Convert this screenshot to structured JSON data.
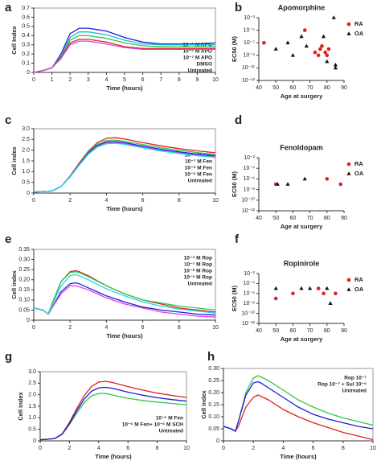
{
  "chart_data": [
    {
      "type": "line",
      "panel": "a",
      "xlabel": "Time (hours)",
      "ylabel": "Cell Index",
      "xlim": [
        0,
        10
      ],
      "ylim": [
        0,
        0.7
      ],
      "xticks": [
        0,
        1,
        2,
        3,
        4,
        5,
        6,
        7,
        8,
        9,
        10
      ],
      "yticks": [
        0,
        0.1,
        0.2,
        0.3,
        0.4,
        0.5,
        0.6,
        0.7
      ],
      "x": [
        0,
        0.5,
        1,
        1.5,
        2,
        2.5,
        3,
        4,
        5,
        6,
        7,
        8,
        9,
        10
      ],
      "series": [
        {
          "name": "10⁻⁵ M APO",
          "color": "#1a1adc",
          "values": [
            0,
            0.02,
            0.05,
            0.2,
            0.42,
            0.48,
            0.48,
            0.45,
            0.38,
            0.33,
            0.31,
            0.31,
            0.31,
            0.32
          ]
        },
        {
          "name": "10⁻⁶ M APO",
          "color": "#1fb8d8",
          "values": [
            0,
            0.02,
            0.05,
            0.18,
            0.38,
            0.44,
            0.44,
            0.41,
            0.35,
            0.31,
            0.3,
            0.3,
            0.3,
            0.3
          ]
        },
        {
          "name": "10⁻⁷ M APO",
          "color": "#2ec84a",
          "values": [
            0,
            0.02,
            0.05,
            0.17,
            0.35,
            0.4,
            0.4,
            0.37,
            0.32,
            0.29,
            0.28,
            0.28,
            0.28,
            0.28
          ]
        },
        {
          "name": "DMSO",
          "color": "#e02020",
          "values": [
            0,
            0.02,
            0.05,
            0.16,
            0.32,
            0.36,
            0.36,
            0.33,
            0.28,
            0.26,
            0.26,
            0.26,
            0.26,
            0.26
          ]
        },
        {
          "name": "Untreated",
          "color": "#e040e0",
          "values": [
            0,
            0.02,
            0.05,
            0.15,
            0.3,
            0.34,
            0.34,
            0.31,
            0.27,
            0.25,
            0.25,
            0.25,
            0.25,
            0.25
          ]
        }
      ]
    },
    {
      "type": "scatter",
      "panel": "b",
      "title": "Apomorphine",
      "xlabel": "Age at surgery",
      "ylabel": "EC50 (M)",
      "log_y": true,
      "xlim": [
        40,
        90
      ],
      "ylim": [
        1e-13,
        0.001
      ],
      "xticks": [
        40,
        50,
        60,
        70,
        80,
        90
      ],
      "yticks": [
        {
          "value": 0.001,
          "label": "10⁻³"
        },
        {
          "value": 1e-05,
          "label": "10⁻⁵"
        },
        {
          "value": 1e-07,
          "label": "10⁻⁷"
        },
        {
          "value": 1e-09,
          "label": "10⁻⁹"
        },
        {
          "value": 1e-11,
          "label": "10⁻¹¹"
        },
        {
          "value": 1e-13,
          "label": "10⁻¹³"
        }
      ],
      "series": [
        {
          "name": "RA",
          "color": "#e02020",
          "marker": "circle",
          "x": [
            43,
            67,
            73,
            75,
            76,
            77,
            79,
            80,
            81
          ],
          "values": [
            1e-07,
            1e-05,
            3e-09,
            1e-09,
            1e-08,
            3e-08,
            3e-09,
            1e-09,
            1e-08
          ]
        },
        {
          "name": "OA",
          "color": "#111111",
          "marker": "triangle",
          "x": [
            50,
            57,
            60,
            65,
            68,
            78,
            80,
            84,
            85,
            85
          ],
          "values": [
            1e-08,
            1e-07,
            1e-09,
            1e-06,
            3e-08,
            1e-06,
            1e-10,
            0.001,
            1e-11,
            3e-11
          ]
        }
      ]
    },
    {
      "type": "line",
      "panel": "c",
      "xlabel": "Time (hours)",
      "ylabel": "Cell index",
      "xlim": [
        0,
        10
      ],
      "ylim": [
        0,
        3
      ],
      "xticks": [
        0,
        2,
        4,
        6,
        8,
        10
      ],
      "yticks": [
        0,
        0.5,
        {
          "value": 1,
          "label": "1.0"
        },
        1.5,
        {
          "value": 2,
          "label": "2.0"
        },
        2.5,
        {
          "value": 3,
          "label": "3.0"
        }
      ],
      "x": [
        0,
        0.5,
        1,
        1.5,
        2,
        2.5,
        3,
        3.5,
        4,
        4.5,
        5,
        6,
        7,
        8,
        9,
        10
      ],
      "series": [
        {
          "name": "10⁻⁶ M Fen",
          "color": "#e02020",
          "values": [
            0.05,
            0.07,
            0.1,
            0.3,
            0.8,
            1.4,
            1.95,
            2.35,
            2.55,
            2.58,
            2.52,
            2.35,
            2.2,
            2.07,
            1.97,
            1.88
          ]
        },
        {
          "name": "10⁻⁷ M Fen",
          "color": "#2ec84a",
          "values": [
            0.05,
            0.07,
            0.1,
            0.3,
            0.78,
            1.35,
            1.9,
            2.28,
            2.45,
            2.47,
            2.42,
            2.26,
            2.11,
            1.99,
            1.89,
            1.8
          ]
        },
        {
          "name": "10⁻⁸ M Fen",
          "color": "#1a1adc",
          "values": [
            0.05,
            0.07,
            0.1,
            0.3,
            0.77,
            1.33,
            1.86,
            2.22,
            2.38,
            2.4,
            2.35,
            2.19,
            2.04,
            1.92,
            1.82,
            1.74
          ]
        },
        {
          "name": "10⁻⁹ M Fen",
          "color": "#e040e0",
          "values": [
            0.05,
            0.07,
            0.1,
            0.3,
            0.76,
            1.31,
            1.83,
            2.18,
            2.33,
            2.35,
            2.3,
            2.14,
            1.99,
            1.87,
            1.77,
            1.69
          ]
        },
        {
          "name": "Untreated",
          "color": "#1fd8e8",
          "values": [
            0.05,
            0.07,
            0.1,
            0.3,
            0.75,
            1.3,
            1.8,
            2.15,
            2.3,
            2.32,
            2.27,
            2.11,
            1.96,
            1.84,
            1.74,
            1.66
          ]
        }
      ]
    },
    {
      "type": "scatter",
      "panel": "d",
      "title": "Fenoldopam",
      "xlabel": "Age at surgery",
      "ylabel": "EC50 (M)",
      "log_y": true,
      "xlim": [
        40,
        90
      ],
      "ylim": [
        1e-12,
        0.01
      ],
      "xticks": [
        40,
        50,
        60,
        70,
        80,
        90
      ],
      "yticks": [
        {
          "value": 0.01,
          "label": "10⁻²"
        },
        {
          "value": 0.0001,
          "label": "10⁻⁴"
        },
        {
          "value": 1e-06,
          "label": "10⁻⁶"
        },
        {
          "value": 1e-08,
          "label": "10⁻⁸"
        },
        {
          "value": 1e-10,
          "label": "10⁻¹⁰"
        },
        {
          "value": 1e-12,
          "label": "10⁻¹²"
        }
      ],
      "series": [
        {
          "name": "RA",
          "color": "#e02020",
          "marker": "circle",
          "x": [
            50,
            80,
            88
          ],
          "values": [
            1e-07,
            1e-06,
            1e-07
          ]
        },
        {
          "name": "OA",
          "color": "#111111",
          "marker": "triangle",
          "x": [
            51,
            57,
            67
          ],
          "values": [
            1e-07,
            1e-07,
            1e-06
          ]
        }
      ]
    },
    {
      "type": "line",
      "panel": "e",
      "xlabel": "Time (hours)",
      "ylabel": "Cell index",
      "xlim": [
        0,
        10
      ],
      "ylim": [
        0,
        0.35
      ],
      "xticks": [
        0,
        2,
        4,
        6,
        8,
        10
      ],
      "yticks": [
        0,
        0.05,
        {
          "value": 0.1,
          "label": "0.10"
        },
        0.15,
        {
          "value": 0.2,
          "label": "0.20"
        },
        0.25,
        {
          "value": 0.3,
          "label": "0.30"
        },
        0.35
      ],
      "x": [
        0,
        0.5,
        0.8,
        1,
        1.5,
        2,
        2.3,
        2.5,
        3,
        4,
        5,
        6,
        7,
        8,
        9,
        10
      ],
      "series": [
        {
          "name": "10⁻⁶ M Rop",
          "color": "#e02020",
          "values": [
            0.06,
            0.05,
            0.03,
            0.08,
            0.19,
            0.24,
            0.245,
            0.24,
            0.22,
            0.17,
            0.13,
            0.1,
            0.08,
            0.06,
            0.05,
            0.04
          ]
        },
        {
          "name": "10⁻⁷ M Rop",
          "color": "#2ec84a",
          "values": [
            0.06,
            0.05,
            0.03,
            0.08,
            0.19,
            0.235,
            0.24,
            0.235,
            0.215,
            0.17,
            0.13,
            0.1,
            0.085,
            0.07,
            0.06,
            0.05
          ]
        },
        {
          "name": "10⁻⁸ M Rop",
          "color": "#1a1adc",
          "values": [
            0.06,
            0.05,
            0.03,
            0.06,
            0.14,
            0.18,
            0.185,
            0.18,
            0.16,
            0.12,
            0.09,
            0.065,
            0.05,
            0.04,
            0.03,
            0.025
          ]
        },
        {
          "name": "10⁻⁹ M Rop",
          "color": "#e040e0",
          "values": [
            0.06,
            0.05,
            0.03,
            0.06,
            0.13,
            0.17,
            0.17,
            0.165,
            0.15,
            0.11,
            0.08,
            0.06,
            0.04,
            0.03,
            0.02,
            0.015
          ]
        },
        {
          "name": "Untreated",
          "color": "#1fd8e8",
          "values": [
            0.06,
            0.05,
            0.03,
            0.07,
            0.17,
            0.22,
            0.225,
            0.22,
            0.2,
            0.155,
            0.12,
            0.09,
            0.07,
            0.055,
            0.045,
            0.035
          ]
        }
      ]
    },
    {
      "type": "scatter",
      "panel": "f",
      "title": "Ropinirole",
      "xlabel": "Age at surgery",
      "ylabel": "EC50 (M)",
      "log_y": true,
      "xlim": [
        40,
        90
      ],
      "ylim": [
        1e-12,
        0.01
      ],
      "xticks": [
        40,
        50,
        60,
        70,
        80,
        90
      ],
      "yticks": [
        {
          "value": 0.01,
          "label": "10⁻²"
        },
        {
          "value": 0.0001,
          "label": "10⁻⁴"
        },
        {
          "value": 1e-06,
          "label": "10⁻⁶"
        },
        {
          "value": 1e-08,
          "label": "10⁻⁸"
        },
        {
          "value": 1e-10,
          "label": "10⁻¹⁰"
        },
        {
          "value": 1e-12,
          "label": "10⁻¹²"
        }
      ],
      "series": [
        {
          "name": "RA",
          "color": "#e02020",
          "marker": "circle",
          "x": [
            50,
            60,
            75,
            78,
            85
          ],
          "values": [
            1e-07,
            1e-06,
            1e-05,
            1e-06,
            1e-06
          ]
        },
        {
          "name": "OA",
          "color": "#111111",
          "marker": "triangle",
          "x": [
            50,
            65,
            70,
            80,
            82
          ],
          "values": [
            1e-05,
            1e-05,
            1e-05,
            1e-05,
            1e-08
          ]
        }
      ]
    },
    {
      "type": "line",
      "panel": "g",
      "xlabel": "Time (hours)",
      "ylabel": "Cell index",
      "xlim": [
        0,
        10
      ],
      "ylim": [
        0,
        3
      ],
      "xticks": [
        0,
        2,
        4,
        6,
        8,
        10
      ],
      "yticks": [
        0,
        0.5,
        {
          "value": 1,
          "label": "1.0"
        },
        1.5,
        {
          "value": 2,
          "label": "2.0"
        },
        2.5,
        {
          "value": 3,
          "label": "3.0"
        }
      ],
      "x": [
        0,
        0.5,
        1,
        1.5,
        2,
        2.5,
        3,
        3.5,
        4,
        4.5,
        5,
        6,
        7,
        8,
        9,
        10
      ],
      "series": [
        {
          "name": "10⁻⁶ M Fen",
          "color": "#e02020",
          "values": [
            0.05,
            0.07,
            0.1,
            0.3,
            0.8,
            1.4,
            1.95,
            2.35,
            2.55,
            2.58,
            2.52,
            2.35,
            2.2,
            2.07,
            1.97,
            1.88
          ]
        },
        {
          "name": "10⁻⁶ M Fen+ 10⁻⁶ M SCH",
          "color": "#2ec84a",
          "values": [
            0.05,
            0.07,
            0.1,
            0.28,
            0.7,
            1.2,
            1.65,
            1.95,
            2.05,
            2.05,
            1.98,
            1.85,
            1.75,
            1.68,
            1.62,
            1.57
          ]
        },
        {
          "name": "Untreated",
          "color": "#1a1adc",
          "values": [
            0.05,
            0.07,
            0.1,
            0.29,
            0.75,
            1.3,
            1.8,
            2.15,
            2.3,
            2.32,
            2.27,
            2.11,
            1.98,
            1.87,
            1.79,
            1.72
          ]
        }
      ]
    },
    {
      "type": "line",
      "panel": "h",
      "xlabel": "Time (hours)",
      "ylabel": "Cell index",
      "xlim": [
        0,
        10
      ],
      "ylim": [
        0,
        0.3
      ],
      "xticks": [
        0,
        2,
        4,
        6,
        8,
        10
      ],
      "yticks": [
        0,
        0.05,
        {
          "value": 0.1,
          "label": "0.10"
        },
        0.15,
        {
          "value": 0.2,
          "label": "0.20"
        },
        0.25,
        {
          "value": 0.3,
          "label": "0.30"
        }
      ],
      "x": [
        0,
        0.5,
        0.8,
        1,
        1.5,
        2,
        2.3,
        2.5,
        3,
        4,
        5,
        6,
        7,
        8,
        9,
        10
      ],
      "series": [
        {
          "name": "Rop 10⁻⁷",
          "color": "#e02020",
          "values": [
            0.06,
            0.05,
            0.04,
            0.06,
            0.14,
            0.18,
            0.19,
            0.185,
            0.17,
            0.13,
            0.1,
            0.075,
            0.055,
            0.035,
            0.02,
            0.005
          ]
        },
        {
          "name": "Rop 10⁻⁷ + Sul 10⁻⁶",
          "color": "#2ec84a",
          "values": [
            0.06,
            0.05,
            0.04,
            0.08,
            0.2,
            0.26,
            0.27,
            0.265,
            0.25,
            0.21,
            0.17,
            0.14,
            0.115,
            0.095,
            0.08,
            0.065
          ]
        },
        {
          "name": "Untreated",
          "color": "#1a1adc",
          "values": [
            0.06,
            0.05,
            0.04,
            0.08,
            0.19,
            0.24,
            0.245,
            0.24,
            0.22,
            0.18,
            0.14,
            0.11,
            0.09,
            0.075,
            0.06,
            0.05
          ]
        }
      ]
    }
  ]
}
